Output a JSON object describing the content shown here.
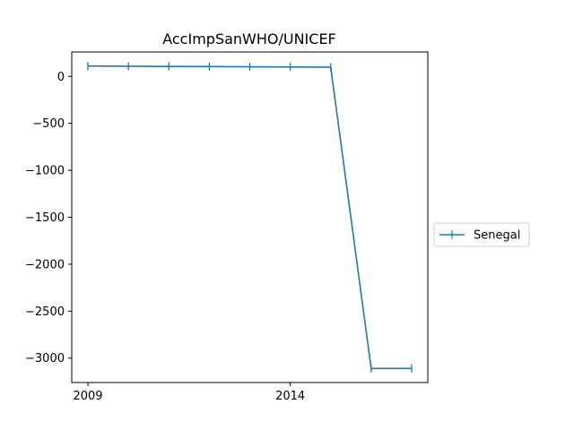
{
  "chart_data": {
    "type": "line",
    "title": "AccImpSanWHO/UNICEF",
    "xlabel": "",
    "ylabel": "",
    "x": [
      2009,
      2010,
      2011,
      2012,
      2013,
      2014,
      2015,
      2016,
      2017
    ],
    "series": [
      {
        "name": "Senegal",
        "values": [
          110,
          108,
          106,
          104,
          102,
          100,
          98,
          -3110,
          -3110
        ],
        "color": "#1f77b4",
        "marker": "|"
      }
    ],
    "xlim": [
      2008.6,
      2017.4
    ],
    "ylim": [
      -3260,
      260
    ],
    "xticks": [
      2009,
      2014
    ],
    "yticks": [
      0,
      -500,
      -1000,
      -1500,
      -2000,
      -2500,
      -3000
    ],
    "ytick_labels": [
      "0",
      "−500",
      "−1000",
      "−1500",
      "−2000",
      "−2500",
      "−3000"
    ],
    "grid": false,
    "legend_position": "center-right-outside"
  }
}
